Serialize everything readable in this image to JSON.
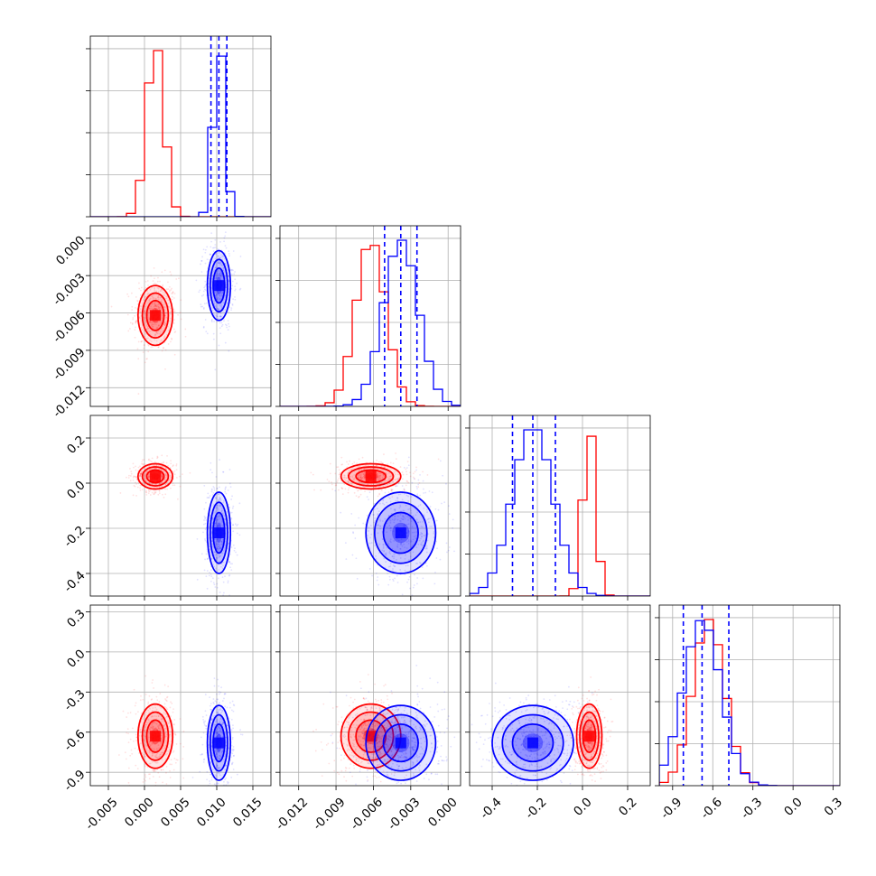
{
  "chart_data": {
    "type": "corner",
    "colors": {
      "series_a": "#ff0000",
      "series_b": "#0000ff",
      "grid": "#b0b0b0"
    },
    "grid": true,
    "series": [
      {
        "color": "#ff0000",
        "centers": [
          0.0015,
          -0.0062,
          0.03,
          -0.63
        ],
        "sigmas": [
          0.0012,
          0.0012,
          0.028,
          0.12
        ]
      },
      {
        "color": "#0000ff",
        "centers": [
          0.0103,
          -0.0038,
          -0.22,
          -0.68
        ],
        "sigmas": [
          0.0008,
          0.0014,
          0.09,
          0.14
        ]
      }
    ],
    "quantiles_series_b": [
      [
        0.0092,
        0.0103,
        0.0114
      ],
      [
        -0.0051,
        -0.0038,
        -0.0025
      ],
      [
        -0.31,
        -0.22,
        -0.12
      ],
      [
        -0.82,
        -0.68,
        -0.48
      ]
    ],
    "parameters": [
      {
        "range": [
          -0.0075,
          0.0175
        ],
        "ticks": [
          "-0.005",
          "0.000",
          "0.005",
          "0.010",
          "0.015"
        ],
        "tick_values": [
          -0.005,
          0.0,
          0.005,
          0.01,
          0.015
        ]
      },
      {
        "range": [
          -0.0135,
          0.001
        ],
        "ticks": [
          "-0.012",
          "-0.009",
          "-0.006",
          "-0.003",
          "0.000"
        ],
        "tick_values": [
          -0.012,
          -0.009,
          -0.006,
          -0.003,
          0.0
        ]
      },
      {
        "range": [
          -0.5,
          0.3
        ],
        "ticks": [
          "-0.4",
          "-0.2",
          "0.0",
          "0.2"
        ],
        "tick_values": [
          -0.4,
          -0.2,
          0.0,
          0.2
        ]
      },
      {
        "range": [
          -1.0,
          0.35
        ],
        "ticks": [
          "-0.9",
          "-0.6",
          "-0.3",
          "0.0",
          "0.3"
        ],
        "tick_values": [
          -0.9,
          -0.6,
          -0.3,
          0.0,
          0.3
        ]
      }
    ]
  }
}
